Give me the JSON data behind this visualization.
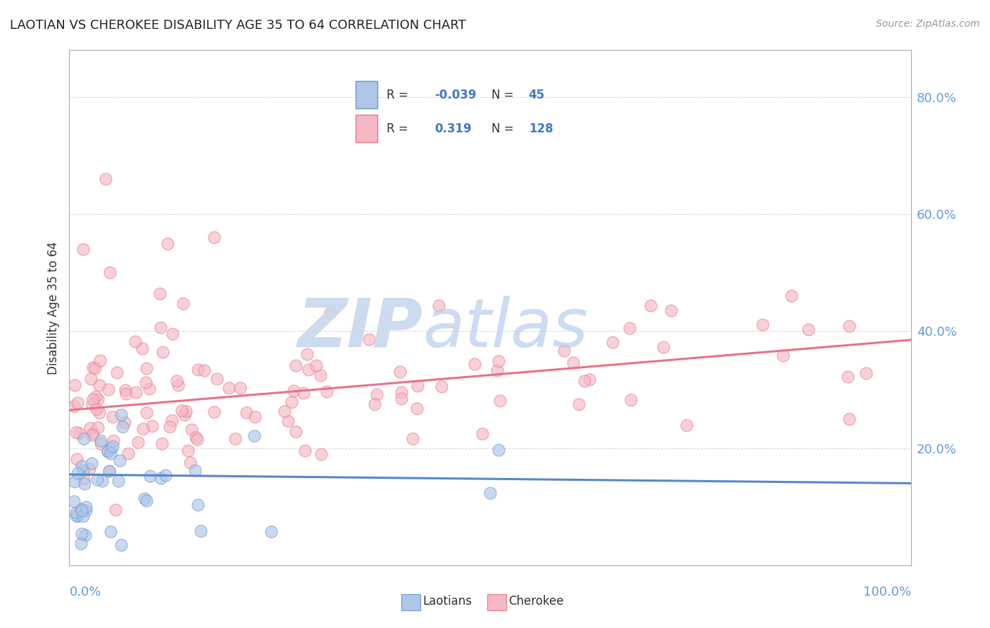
{
  "title": "LAOTIAN VS CHEROKEE DISABILITY AGE 35 TO 64 CORRELATION CHART",
  "source": "Source: ZipAtlas.com",
  "ylabel": "Disability Age 35 to 64",
  "xmin": 0.0,
  "xmax": 1.0,
  "ymin": 0.0,
  "ymax": 0.88,
  "laotian_R": -0.039,
  "laotian_N": 45,
  "cherokee_R": 0.319,
  "cherokee_N": 128,
  "laotian_color": "#aec6e8",
  "laotian_edge": "#6699cc",
  "cherokee_color": "#f5b8c4",
  "cherokee_edge": "#e8788a",
  "laotian_line_color": "#5588cc",
  "cherokee_line_color": "#e8728a",
  "tick_color": "#6699dd",
  "background_color": "#ffffff",
  "grid_color": "#bbbbbb",
  "title_color": "#222222",
  "legend_r_color": "#4477cc",
  "legend_n_color": "#4477cc",
  "watermark_zip_color": "#c8d8ee",
  "watermark_atlas_color": "#b8ccee"
}
